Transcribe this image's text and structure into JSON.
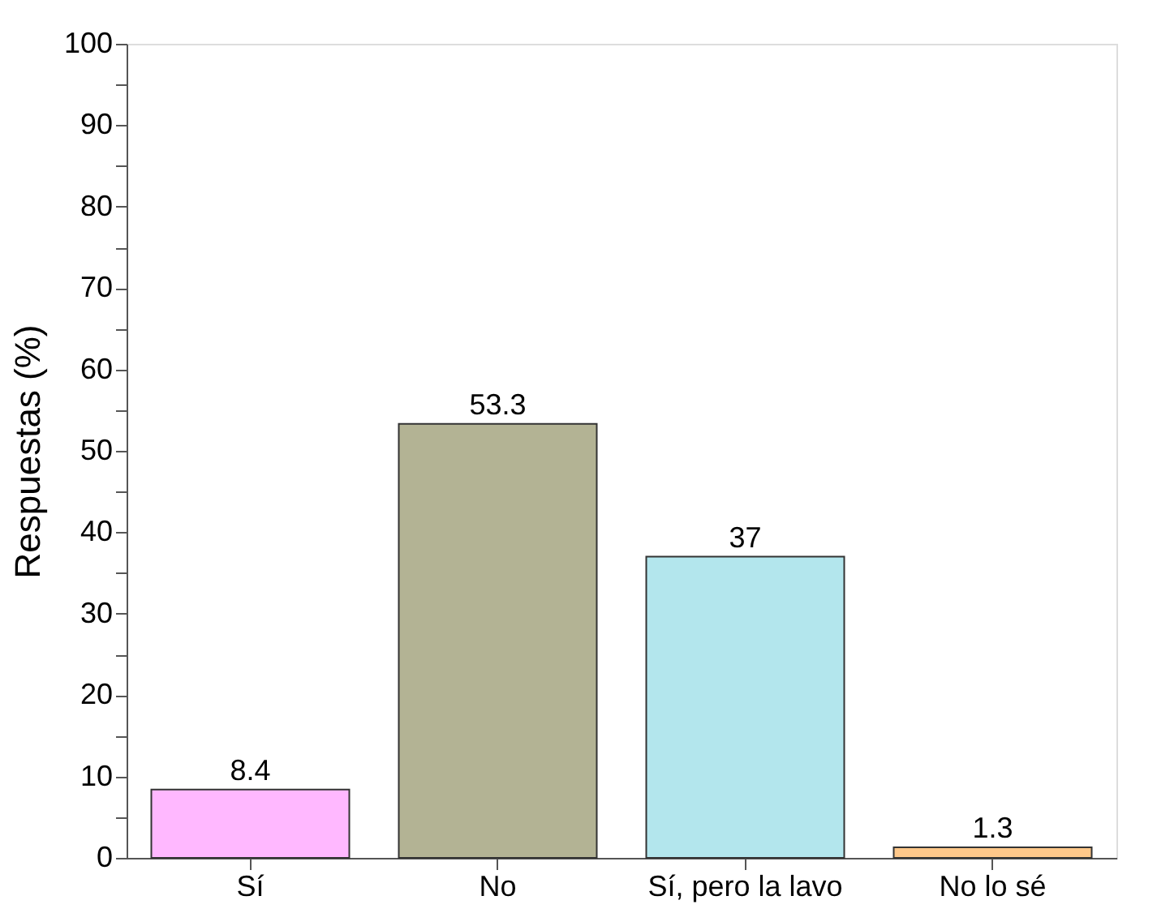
{
  "chart_data": {
    "type": "bar",
    "ylabel": "Respuestas (%)",
    "categories": [
      "Sí",
      "No",
      "Sí, pero la lavo",
      "No lo sé"
    ],
    "values": [
      8.4,
      53.3,
      37,
      1.3
    ],
    "colors": [
      "#ffb8ff",
      "#b3b394",
      "#b3e6ed",
      "#ffc88a"
    ],
    "ylim": [
      0,
      100
    ],
    "yticks": [
      0,
      {
        "value": 5,
        "label": null
      },
      10,
      {
        "value": 15,
        "label": null
      },
      20,
      {
        "value": 25,
        "label": null
      },
      30,
      {
        "value": 35,
        "label": null
      },
      40,
      {
        "value": 45,
        "label": null
      },
      50,
      {
        "value": 55,
        "label": null
      },
      60,
      {
        "value": 65,
        "label": null
      },
      70,
      {
        "value": 75,
        "label": null
      },
      80,
      {
        "value": 85,
        "label": null
      },
      90,
      {
        "value": 95,
        "label": null
      },
      100
    ],
    "data_labels": true,
    "grid": false
  }
}
